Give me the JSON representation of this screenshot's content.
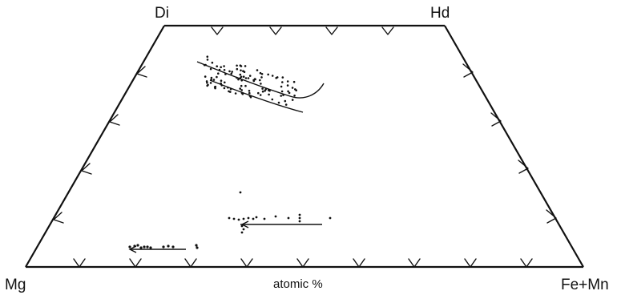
{
  "vertices": {
    "di": "Di",
    "hd": "Hd",
    "mg": "Mg",
    "femn": "Fe+Mn"
  },
  "caption": "atomic %"
}
